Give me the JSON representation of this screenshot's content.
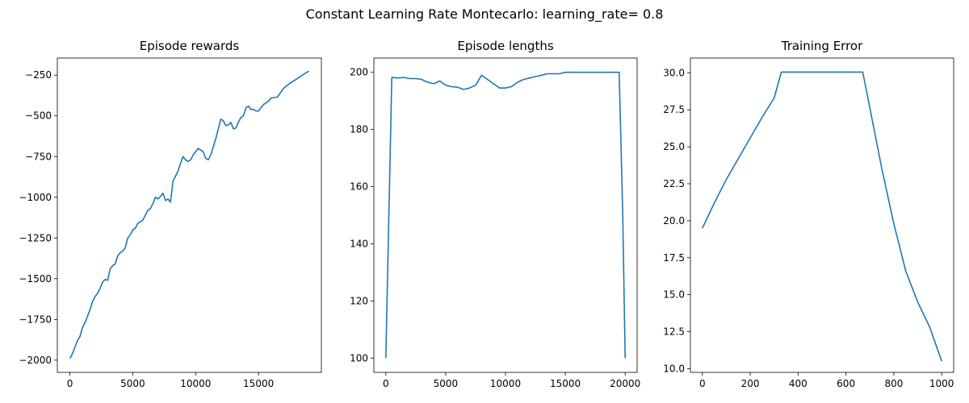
{
  "figure": {
    "title": "Constant Learning Rate Montecarlo: learning_rate= 0.8",
    "line_color": "#1f77b4"
  },
  "chart_data": [
    {
      "type": "line",
      "title": "Episode rewards",
      "xlabel": "",
      "ylabel": "",
      "xlim": [
        -1000,
        20000
      ],
      "ylim": [
        -2075,
        -145
      ],
      "xticks": [
        0,
        5000,
        10000,
        15000
      ],
      "yticks": [
        -2000,
        -1750,
        -1500,
        -1250,
        -1000,
        -750,
        -500,
        -250
      ],
      "grid": false,
      "series": [
        {
          "x": [
            0,
            200,
            400,
            600,
            800,
            1000,
            1200,
            1400,
            1600,
            1800,
            2000,
            2200,
            2400,
            2600,
            2800,
            3000,
            3200,
            3400,
            3600,
            3800,
            4000,
            4200,
            4400,
            4600,
            4800,
            5000,
            5200,
            5400,
            5600,
            5800,
            6000,
            6200,
            6400,
            6600,
            6800,
            7000,
            7200,
            7400,
            7600,
            7800,
            8000,
            8200,
            8400,
            8600,
            8800,
            9000,
            9200,
            9400,
            9600,
            9800,
            10000,
            10200,
            10400,
            10600,
            10800,
            11000,
            11200,
            11400,
            11600,
            11800,
            12000,
            12200,
            12400,
            12600,
            12800,
            13000,
            13200,
            13400,
            13600,
            13800,
            14000,
            14200,
            14400,
            14600,
            14800,
            15000,
            15200,
            15400,
            15600,
            15800,
            16000,
            16500,
            17000,
            17500,
            18000,
            18500,
            19000
          ],
          "y": [
            -1990,
            -1960,
            -1920,
            -1880,
            -1855,
            -1800,
            -1770,
            -1730,
            -1690,
            -1640,
            -1610,
            -1590,
            -1560,
            -1520,
            -1505,
            -1510,
            -1440,
            -1420,
            -1410,
            -1360,
            -1340,
            -1330,
            -1310,
            -1250,
            -1230,
            -1200,
            -1190,
            -1160,
            -1150,
            -1140,
            -1110,
            -1080,
            -1070,
            -1040,
            -1000,
            -1010,
            -995,
            -975,
            -1020,
            -1010,
            -1030,
            -900,
            -870,
            -840,
            -790,
            -750,
            -770,
            -780,
            -770,
            -740,
            -720,
            -700,
            -710,
            -720,
            -760,
            -770,
            -740,
            -690,
            -640,
            -580,
            -520,
            -530,
            -560,
            -555,
            -540,
            -580,
            -575,
            -540,
            -510,
            -500,
            -450,
            -440,
            -460,
            -460,
            -470,
            -470,
            -450,
            -430,
            -420,
            -410,
            -390,
            -385,
            -330,
            -300,
            -275,
            -250,
            -225
          ]
        }
      ]
    },
    {
      "type": "line",
      "title": "Episode lengths",
      "xlabel": "",
      "ylabel": "",
      "xlim": [
        -1000,
        21000
      ],
      "ylim": [
        95,
        205
      ],
      "xticks": [
        0,
        5000,
        10000,
        15000,
        20000
      ],
      "yticks": [
        100,
        120,
        140,
        160,
        180,
        200
      ],
      "grid": false,
      "series": [
        {
          "x": [
            0,
            500,
            1000,
            1500,
            2000,
            2500,
            3000,
            3500,
            4000,
            4500,
            5000,
            5500,
            6000,
            6500,
            7000,
            7500,
            8000,
            8500,
            9000,
            9500,
            10000,
            10500,
            11000,
            11500,
            12000,
            12500,
            13000,
            13500,
            14000,
            14500,
            15000,
            16000,
            17000,
            18000,
            19000,
            19500,
            19800,
            20000
          ],
          "y": [
            100,
            198.2,
            198,
            198.2,
            197.8,
            197.8,
            197.5,
            196.5,
            196,
            197,
            195.5,
            195,
            194.8,
            194,
            194.5,
            195.5,
            199,
            197.5,
            196,
            194.5,
            194.5,
            195,
            196.5,
            197.5,
            198,
            198.5,
            199,
            199.5,
            199.5,
            199.5,
            200,
            200,
            200,
            200,
            200,
            200,
            150,
            100
          ]
        }
      ]
    },
    {
      "type": "line",
      "title": "Training Error",
      "xlabel": "",
      "ylabel": "",
      "xlim": [
        -50,
        1050
      ],
      "ylim": [
        9.75,
        31
      ],
      "xticks": [
        0,
        200,
        400,
        600,
        800,
        1000
      ],
      "yticks": [
        10.0,
        12.5,
        15.0,
        17.5,
        20.0,
        22.5,
        25.0,
        27.5,
        30.0
      ],
      "grid": false,
      "series": [
        {
          "x": [
            0,
            50,
            100,
            150,
            200,
            250,
            300,
            330,
            400,
            500,
            600,
            670,
            700,
            750,
            800,
            850,
            900,
            950,
            1000
          ],
          "y": [
            19.5,
            21.2,
            22.8,
            24.2,
            25.6,
            27.0,
            28.3,
            30.05,
            30.05,
            30.05,
            30.05,
            30.05,
            27.6,
            23.5,
            19.8,
            16.6,
            14.5,
            12.8,
            10.5
          ]
        }
      ]
    }
  ]
}
